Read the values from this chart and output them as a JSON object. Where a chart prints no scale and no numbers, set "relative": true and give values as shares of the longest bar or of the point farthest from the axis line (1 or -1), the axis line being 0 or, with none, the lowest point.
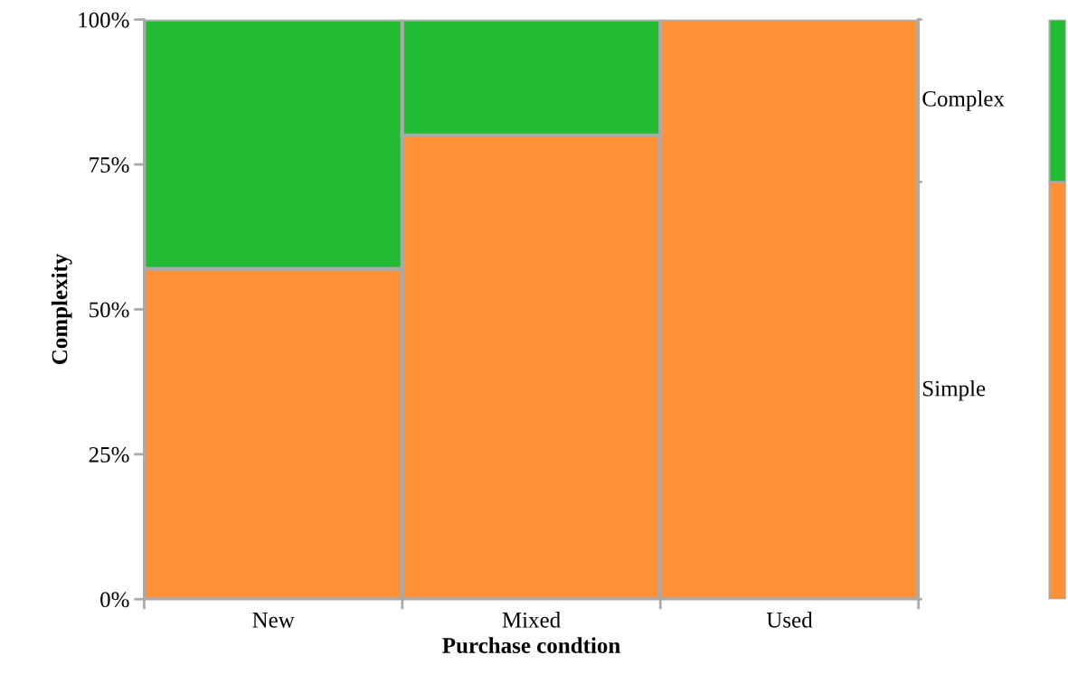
{
  "chart_data": [
    {
      "type": "bar",
      "stacked": true,
      "xlabel": "Purchase condtion",
      "ylabel": "Complexity",
      "categories": [
        "New",
        "Mixed",
        "Used"
      ],
      "ylim": [
        0,
        100
      ],
      "yticks": [
        {
          "value": 0,
          "label": "0%"
        },
        {
          "value": 25,
          "label": "25%"
        },
        {
          "value": 50,
          "label": "50%"
        },
        {
          "value": 75,
          "label": "75%"
        },
        {
          "value": 100,
          "label": "100%"
        }
      ],
      "series": [
        {
          "color": "#ff9138",
          "values": [
            57,
            80,
            100
          ]
        },
        {
          "color": "#22bb33",
          "values": [
            43,
            20,
            0
          ]
        }
      ]
    },
    {
      "type": "bar",
      "stacked": true,
      "relative": true,
      "categories": [
        null
      ],
      "series": [
        {
          "name": "Simple",
          "color": "#ff9138",
          "values": [
            0.72
          ]
        },
        {
          "name": "Complex",
          "color": "#22bb33",
          "values": [
            0.28
          ]
        }
      ]
    }
  ]
}
